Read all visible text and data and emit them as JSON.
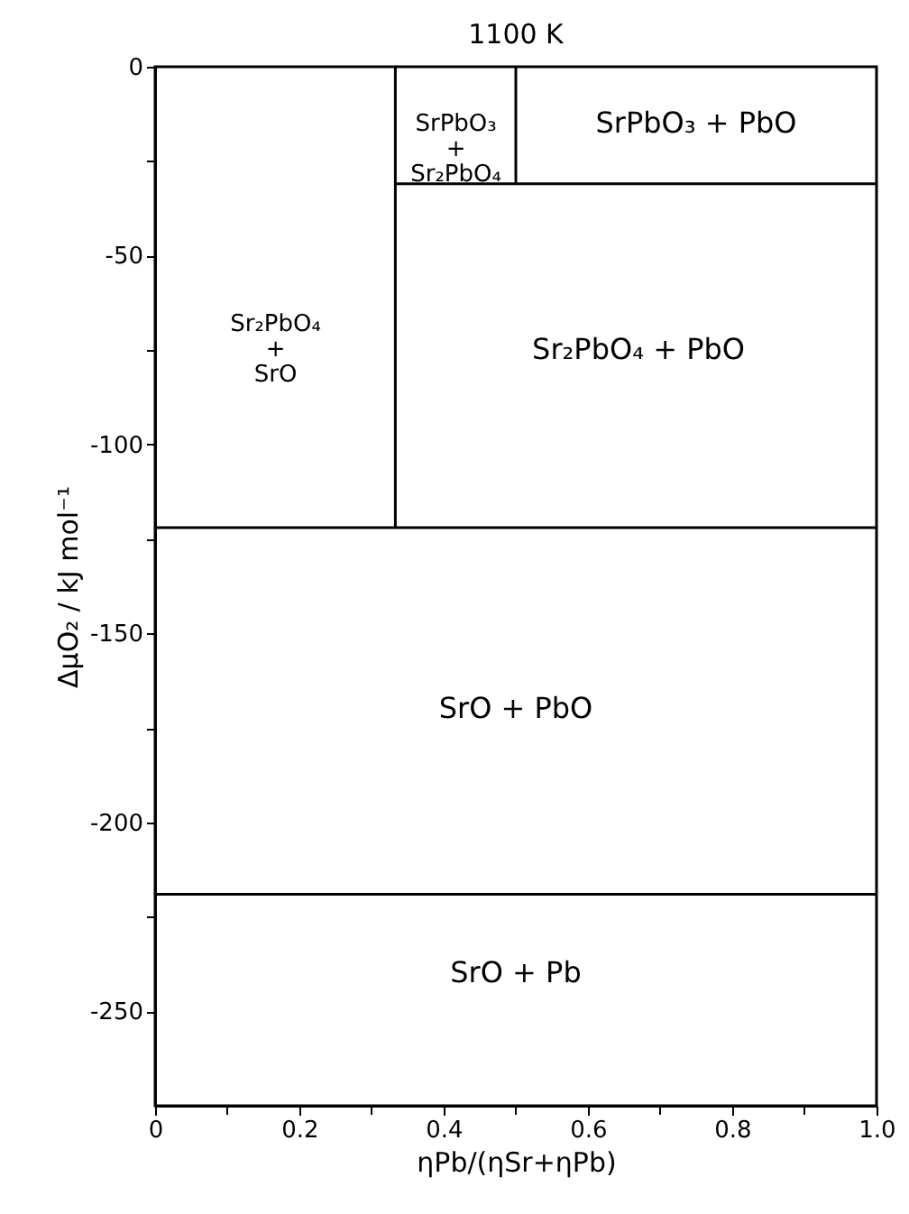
{
  "chart_data": {
    "type": "line",
    "title": "1100 K",
    "xlabel": "ηPb/(ηSr+ηPb)",
    "ylabel": "ΔμO₂ / kJ mol⁻¹",
    "xlim": [
      0,
      1
    ],
    "ylim": [
      -275,
      0
    ],
    "xticks": [
      0,
      {
        "value": 0.1,
        "label": null
      },
      0.2,
      {
        "value": 0.3,
        "label": null
      },
      0.4,
      {
        "value": 0.5,
        "label": null
      },
      0.6,
      {
        "value": 0.7,
        "label": null
      },
      0.8,
      {
        "value": 0.9,
        "label": null
      },
      {
        "value": 1,
        "label": "1.0"
      }
    ],
    "yticks": [
      0,
      {
        "value": -25,
        "label": null
      },
      -50,
      {
        "value": -75,
        "label": null
      },
      -100,
      {
        "value": -125,
        "label": null
      },
      -150,
      {
        "value": -175,
        "label": null
      },
      -200,
      {
        "value": -225,
        "label": null
      },
      -250
    ],
    "series": [
      {
        "color": "#000000",
        "x": [
          0,
          1
        ],
        "values": [
          -122,
          -122
        ]
      },
      {
        "color": "#000000",
        "x": [
          0,
          1
        ],
        "values": [
          -219,
          -219
        ]
      },
      {
        "color": "#000000",
        "x": [
          0.333,
          1
        ],
        "values": [
          -31,
          -31
        ]
      },
      {
        "color": "#000000",
        "x": [
          0.333,
          0.333
        ],
        "values": [
          -122,
          0
        ]
      },
      {
        "color": "#000000",
        "x": [
          0.5,
          0.5
        ],
        "values": [
          -31,
          0
        ]
      }
    ],
    "annotations": [
      "Sr₂PbO₄\n+\nSrO",
      "SrPbO₃\n+\nSr₂PbO₄",
      "SrPbO₃ + PbO",
      "Sr₂PbO₄ + PbO",
      "SrO + PbO",
      "SrO + Pb"
    ],
    "grid": false,
    "legend": false,
    "marker": "none",
    "line_style": "solid"
  }
}
